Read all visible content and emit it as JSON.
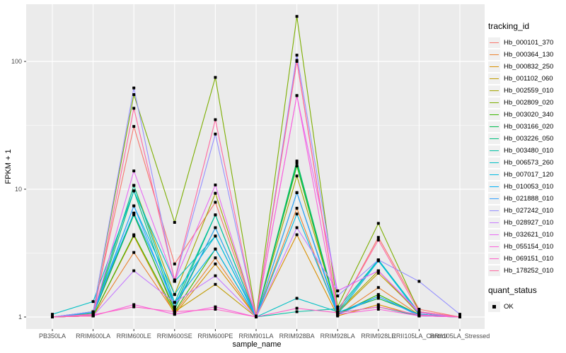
{
  "figure": {
    "background": "#FFFFFF",
    "panel_background": "#EBEBEB",
    "grid_color": "#FFFFFF",
    "tick_color": "#333333",
    "tick_label_color": "#4D4D4D",
    "point_color": "#000000"
  },
  "axes": {
    "x_title": "sample_name",
    "y_title": "FPKM + 1",
    "y_ticks": [
      {
        "value": 1,
        "label": "1"
      },
      {
        "value": 10,
        "label": "10"
      },
      {
        "value": 100,
        "label": "100"
      }
    ],
    "y_minor": [
      3.1623,
      31.623
    ]
  },
  "legend": {
    "tracking_title": "tracking_id",
    "quant_title": "quant_status",
    "quant_items": [
      {
        "label": "OK",
        "shape": "square",
        "color": "#000000"
      }
    ]
  },
  "chart_data": {
    "type": "line",
    "title": "",
    "xlabel": "sample_name",
    "ylabel": "FPKM + 1",
    "y_scale": "log10",
    "ylim": [
      0.8,
      280
    ],
    "grid": true,
    "legend_position": "right",
    "point_shape": "black-square",
    "categories": [
      "PB350LA",
      "RRIM600LA",
      "RRIM600LE",
      "RRIM600SE",
      "RRIM600PE",
      "RRIM901LA",
      "RRIM928BA",
      "RRIM928LA",
      "RRIM928LE",
      "RRII105LA_Control",
      "RRII105LA_Stressed"
    ],
    "series": [
      {
        "name": "Hb_000101_370",
        "color": "#F8766D",
        "values": [
          1.0,
          1.08,
          31,
          2.6,
          7.9,
          1.0,
          100,
          1.08,
          4.2,
          1.15,
          1.0
        ]
      },
      {
        "name": "Hb_000364_130",
        "color": "#EA8331",
        "values": [
          1.0,
          1.02,
          3.2,
          1.08,
          2.9,
          1.0,
          7.1,
          1.03,
          1.7,
          1.04,
          1.0
        ]
      },
      {
        "name": "Hb_000832_250",
        "color": "#D89000",
        "values": [
          1.0,
          1.02,
          4.3,
          1.05,
          2.6,
          1.0,
          4.4,
          1.02,
          1.25,
          1.02,
          1.0
        ]
      },
      {
        "name": "Hb_001102_060",
        "color": "#C09B00",
        "values": [
          1.0,
          1.05,
          6.5,
          1.1,
          1.8,
          1.0,
          9.4,
          1.08,
          2.2,
          1.08,
          1.0
        ]
      },
      {
        "name": "Hb_002559_010",
        "color": "#A3A500",
        "values": [
          1.0,
          1.06,
          10.7,
          1.5,
          9.3,
          1.02,
          12.7,
          1.1,
          2.3,
          1.05,
          1.0
        ]
      },
      {
        "name": "Hb_002809_020",
        "color": "#7CAE00",
        "values": [
          1.0,
          1.1,
          55,
          5.5,
          75,
          1.02,
          225,
          1.2,
          5.4,
          1.1,
          1.0
        ]
      },
      {
        "name": "Hb_003020_340",
        "color": "#39B600",
        "values": [
          1.0,
          1.02,
          4.4,
          1.1,
          3.4,
          1.0,
          15.2,
          1.05,
          1.5,
          1.04,
          1.0
        ]
      },
      {
        "name": "Hb_003166_020",
        "color": "#00BB4E",
        "values": [
          1.0,
          1.04,
          6.3,
          1.15,
          5.0,
          1.0,
          16.6,
          1.08,
          1.4,
          1.05,
          1.0
        ]
      },
      {
        "name": "Hb_003226_050",
        "color": "#00BF7D",
        "values": [
          1.0,
          1.02,
          9.7,
          1.2,
          6.3,
          1.0,
          16.0,
          1.08,
          1.2,
          1.02,
          1.0
        ]
      },
      {
        "name": "Hb_003480_010",
        "color": "#00C1A3",
        "values": [
          1.0,
          1.08,
          10.7,
          1.3,
          6.3,
          1.0,
          1.1,
          1.16,
          2.8,
          1.08,
          1.0
        ]
      },
      {
        "name": "Hb_006573_260",
        "color": "#00BFC4",
        "values": [
          1.05,
          1.32,
          9.7,
          1.9,
          4.3,
          1.0,
          1.4,
          1.1,
          2.8,
          1.08,
          1.0
        ]
      },
      {
        "name": "Hb_007017_120",
        "color": "#00BAE0",
        "values": [
          1.0,
          1.08,
          7.4,
          1.5,
          4.3,
          1.0,
          6.4,
          1.05,
          2.75,
          1.05,
          1.0
        ]
      },
      {
        "name": "Hb_010053_010",
        "color": "#00B0F6",
        "values": [
          1.0,
          1.1,
          6.5,
          1.3,
          3.4,
          1.0,
          9.4,
          1.08,
          1.45,
          1.04,
          1.0
        ]
      },
      {
        "name": "Hb_021888_010",
        "color": "#35A2FF",
        "values": [
          1.0,
          1.04,
          7.4,
          1.2,
          5.0,
          1.0,
          9.4,
          1.04,
          1.45,
          1.02,
          1.0
        ]
      },
      {
        "name": "Hb_027242_010",
        "color": "#9590FF",
        "values": [
          1.0,
          1.1,
          62,
          1.9,
          27,
          1.0,
          112,
          1.46,
          2.8,
          1.9,
          1.05
        ]
      },
      {
        "name": "Hb_028927_010",
        "color": "#C77CFF",
        "values": [
          1.0,
          1.02,
          2.3,
          1.3,
          2.1,
          1.0,
          5.0,
          1.6,
          2.3,
          1.08,
          1.0
        ]
      },
      {
        "name": "Hb_032621_010",
        "color": "#E76BF3",
        "values": [
          1.0,
          1.05,
          13.9,
          1.9,
          10.8,
          1.0,
          54,
          1.6,
          2.3,
          1.1,
          1.0
        ]
      },
      {
        "name": "Hb_055154_010",
        "color": "#FA62DB",
        "values": [
          1.0,
          1.02,
          1.25,
          1.05,
          1.2,
          1.0,
          54,
          1.05,
          1.15,
          1.02,
          1.0
        ]
      },
      {
        "name": "Hb_069151_010",
        "color": "#FF61C9",
        "values": [
          1.0,
          1.04,
          1.2,
          1.1,
          1.15,
          1.0,
          1.17,
          1.08,
          1.2,
          1.04,
          1.0
        ]
      },
      {
        "name": "Hb_178252_010",
        "color": "#FF68A1",
        "values": [
          1.0,
          1.02,
          43,
          1.95,
          35,
          1.0,
          102,
          1.1,
          4.0,
          1.1,
          1.0
        ]
      }
    ]
  }
}
